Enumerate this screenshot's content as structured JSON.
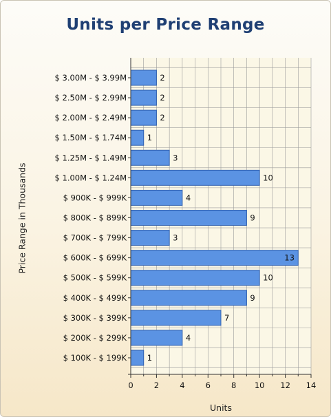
{
  "chart_data": {
    "type": "bar",
    "orientation": "horizontal",
    "title": "Units per Price Range",
    "xlabel": "Units",
    "ylabel": "Price Range in Thousands",
    "categories": [
      "$ 3.00M - $ 3.99M",
      "$ 2.50M - $ 2.99M",
      "$ 2.00M - $ 2.49M",
      "$ 1.50M - $ 1.74M",
      "$ 1.25M - $ 1.49M",
      "$ 1.00M - $ 1.24M",
      "$ 900K - $ 999K",
      "$ 800K - $ 899K",
      "$ 700K - $ 799K",
      "$ 600K - $ 699K",
      "$ 500K - $ 599K",
      "$ 400K - $ 499K",
      "$ 300K - $ 399K",
      "$ 200K - $ 299K",
      "$ 100K - $ 199K"
    ],
    "values": [
      2,
      2,
      2,
      1,
      3,
      10,
      4,
      9,
      3,
      13,
      10,
      9,
      7,
      4,
      1
    ],
    "xlim": [
      0,
      14
    ],
    "x_ticks": [
      0,
      2,
      4,
      6,
      8,
      10,
      12,
      14
    ],
    "grid": true,
    "data_labels": true,
    "colors": {
      "bar_fill": "#5b93e3",
      "bar_stroke": "#3060b0",
      "plot_background": "#fbf7e6",
      "grid": "#9b9b9b",
      "title": "#1f3f73"
    }
  }
}
